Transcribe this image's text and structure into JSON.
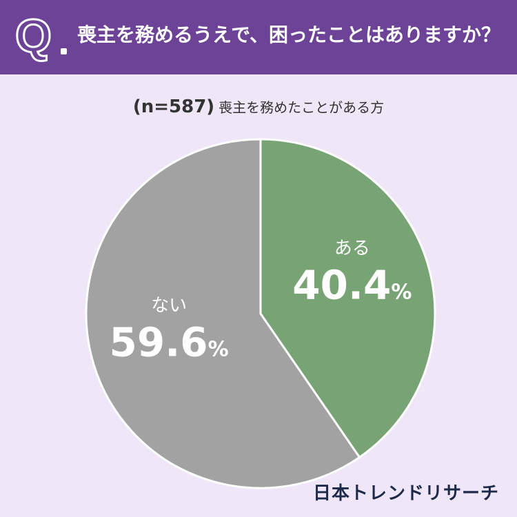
{
  "header": {
    "q_mark": "Q",
    "question": "喪主を務めるうえで、困ったことはありますか？"
  },
  "subtitle": {
    "n_label": "(n=587)",
    "description": "喪主を務めたことがある方"
  },
  "chart_data": {
    "type": "pie",
    "title": "",
    "unit": "%",
    "slices": [
      {
        "label": "ある",
        "value": 40.4,
        "color": "#78a375"
      },
      {
        "label": "ない",
        "value": 59.6,
        "color": "#a2a2a2"
      }
    ]
  },
  "brand": {
    "name": "日本トレンドリサーチ"
  }
}
